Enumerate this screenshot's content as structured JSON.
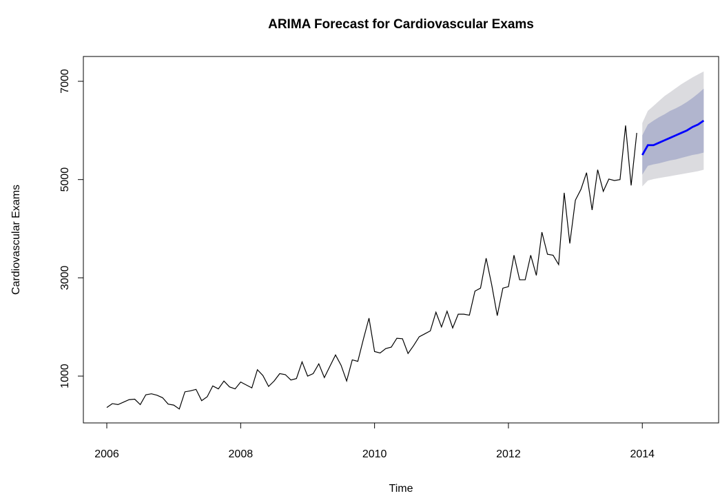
{
  "chart_data": {
    "type": "line",
    "title": "ARIMA Forecast for Cardiovascular Exams",
    "xlabel": "Time",
    "ylabel": "Cardiovascular Exams",
    "xlim": [
      2005.65,
      2015.14
    ],
    "ylim": [
      47,
      7505
    ],
    "xticks": [
      2006,
      2008,
      2010,
      2012,
      2014
    ],
    "yticks": [
      1000,
      3000,
      5000,
      7000
    ],
    "observed": {
      "color": "#000000",
      "x": [
        2006,
        2006.083,
        2006.167,
        2006.25,
        2006.333,
        2006.417,
        2006.5,
        2006.583,
        2006.667,
        2006.75,
        2006.833,
        2006.917,
        2007,
        2007.083,
        2007.167,
        2007.25,
        2007.333,
        2007.417,
        2007.5,
        2007.583,
        2007.667,
        2007.75,
        2007.833,
        2007.917,
        2008,
        2008.083,
        2008.167,
        2008.25,
        2008.333,
        2008.417,
        2008.5,
        2008.583,
        2008.667,
        2008.75,
        2008.833,
        2008.917,
        2009,
        2009.083,
        2009.167,
        2009.25,
        2009.333,
        2009.417,
        2009.5,
        2009.583,
        2009.667,
        2009.75,
        2009.833,
        2009.917,
        2010,
        2010.083,
        2010.167,
        2010.25,
        2010.333,
        2010.417,
        2010.5,
        2010.583,
        2010.667,
        2010.75,
        2010.833,
        2010.917,
        2011,
        2011.083,
        2011.167,
        2011.25,
        2011.333,
        2011.417,
        2011.5,
        2011.583,
        2011.667,
        2011.75,
        2011.833,
        2011.917,
        2012,
        2012.083,
        2012.167,
        2012.25,
        2012.333,
        2012.417,
        2012.5,
        2012.583,
        2012.667,
        2012.75,
        2012.833,
        2012.917,
        2013,
        2013.083,
        2013.167,
        2013.25,
        2013.333,
        2013.417,
        2013.5,
        2013.583,
        2013.667,
        2013.75,
        2013.833,
        2013.917
      ],
      "values": [
        360,
        440,
        420,
        470,
        520,
        530,
        420,
        620,
        640,
        610,
        560,
        430,
        410,
        330,
        680,
        700,
        730,
        500,
        580,
        800,
        740,
        900,
        780,
        740,
        880,
        820,
        760,
        1130,
        1010,
        790,
        900,
        1050,
        1030,
        920,
        950,
        1290,
        1000,
        1050,
        1250,
        970,
        1200,
        1430,
        1220,
        900,
        1330,
        1300,
        1750,
        2180,
        1500,
        1470,
        1560,
        1590,
        1770,
        1760,
        1460,
        1620,
        1800,
        1860,
        1920,
        2300,
        2000,
        2320,
        1980,
        2260,
        2260,
        2240,
        2730,
        2790,
        3400,
        2860,
        2230,
        2790,
        2820,
        3460,
        2960,
        2960,
        3460,
        3050,
        3930,
        3480,
        3460,
        3270,
        4730,
        3700,
        4580,
        4800,
        5140,
        4380,
        5200,
        4760,
        5010,
        4980,
        5000,
        6100,
        4880,
        5950
      ]
    },
    "forecast": {
      "color": "#0000ff",
      "color80": "#b1b5ce",
      "color95": "#dbdbdf",
      "x": [
        2014,
        2014.083,
        2014.167,
        2014.25,
        2014.333,
        2014.417,
        2014.5,
        2014.583,
        2014.667,
        2014.75,
        2014.833,
        2014.917
      ],
      "mean": [
        5500,
        5700,
        5700,
        5750,
        5800,
        5850,
        5900,
        5950,
        6000,
        6070,
        6120,
        6200
      ],
      "lo80": [
        5100,
        5280,
        5310,
        5330,
        5360,
        5390,
        5410,
        5440,
        5470,
        5500,
        5520,
        5550
      ],
      "hi80": [
        5900,
        6120,
        6200,
        6270,
        6330,
        6400,
        6450,
        6510,
        6580,
        6660,
        6750,
        6850
      ],
      "lo95": [
        4860,
        4980,
        5010,
        5030,
        5050,
        5070,
        5090,
        5110,
        5130,
        5150,
        5170,
        5200
      ],
      "hi95": [
        6150,
        6400,
        6500,
        6600,
        6700,
        6780,
        6860,
        6940,
        7010,
        7080,
        7140,
        7200
      ]
    }
  }
}
